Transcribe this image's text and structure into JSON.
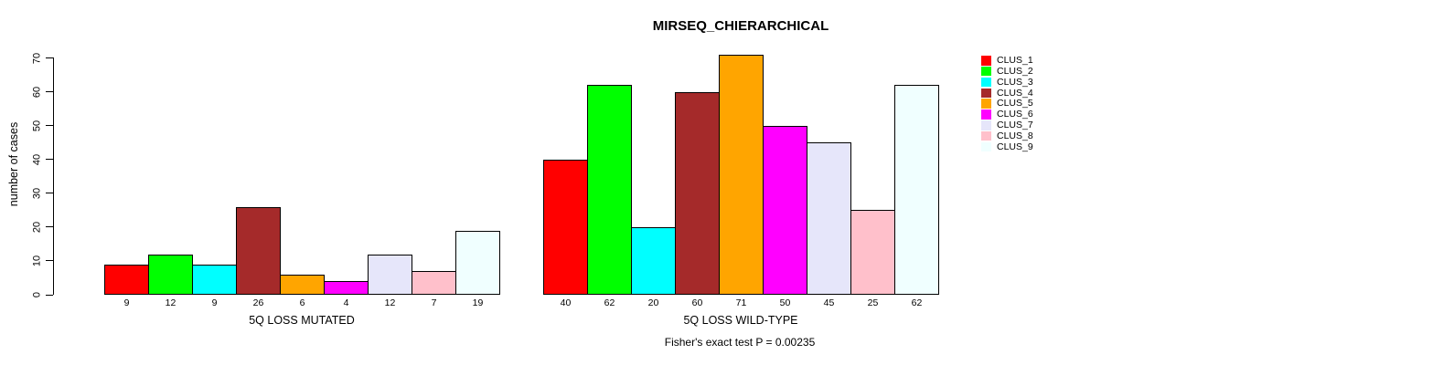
{
  "chart_data": {
    "type": "bar",
    "title": "MIRSEQ_CHIERARCHICAL",
    "ylabel": "number of cases",
    "ylim": [
      0,
      70
    ],
    "yticks": [
      0,
      10,
      20,
      30,
      40,
      50,
      60,
      70
    ],
    "grid": false,
    "legend_position": "right",
    "series_labels": [
      "CLUS_1",
      "CLUS_2",
      "CLUS_3",
      "CLUS_4",
      "CLUS_5",
      "CLUS_6",
      "CLUS_7",
      "CLUS_8",
      "CLUS_9"
    ],
    "colors": [
      "#FF0000",
      "#00FF00",
      "#00FFFF",
      "#A52A2A",
      "#FFA500",
      "#FF00FF",
      "#E6E6FA",
      "#FFC0CB",
      "#F0FFFF"
    ],
    "groups": [
      {
        "xlabel": "5Q LOSS MUTATED",
        "values": [
          9,
          12,
          9,
          26,
          6,
          4,
          12,
          7,
          19
        ]
      },
      {
        "xlabel": "5Q LOSS WILD-TYPE",
        "values": [
          40,
          62,
          20,
          60,
          71,
          50,
          45,
          25,
          62
        ]
      }
    ],
    "annotation": "Fisher's exact test P = 0.00235"
  }
}
